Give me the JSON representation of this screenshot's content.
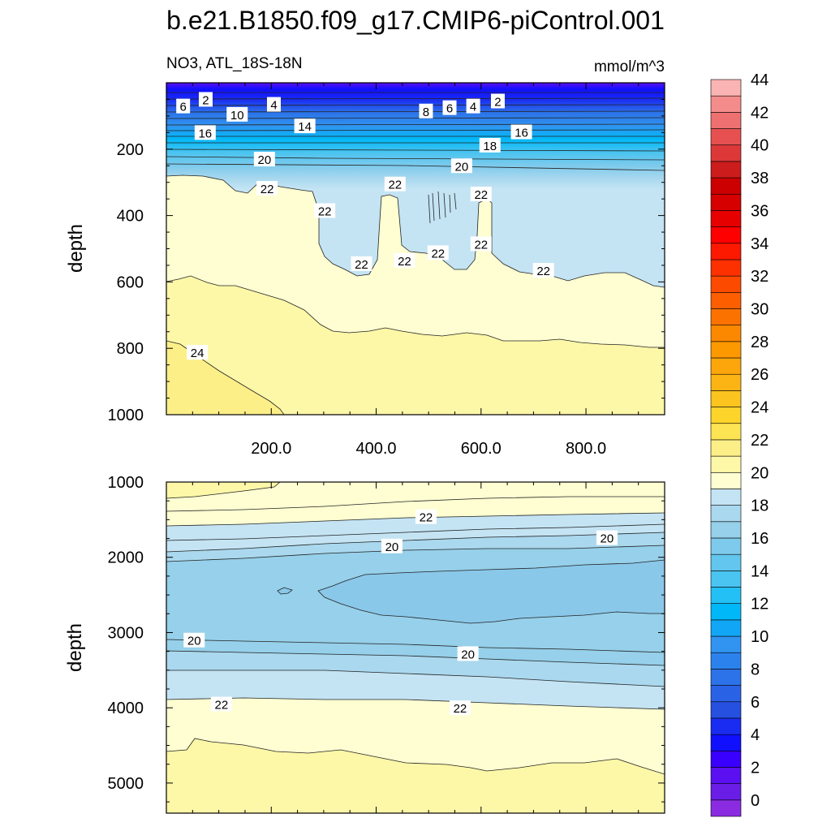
{
  "chart_data": [
    {
      "type": "contour",
      "title": "b.e21.B1850.f09_g17.CMIP6-piControl.001",
      "left_label": "NO3, ATL_18S-18N",
      "right_label": "mmol/m^3",
      "ylabel": "depth",
      "xlim": [
        0,
        950
      ],
      "ylim": [
        1000,
        0
      ],
      "xticks": [
        "200.0",
        "400.0",
        "600.0",
        "800.0"
      ],
      "xtick_values": [
        200,
        400,
        600,
        800
      ],
      "yticks": [
        "200",
        "400",
        "600",
        "800",
        "1000"
      ],
      "ytick_values": [
        200,
        400,
        600,
        800,
        1000
      ],
      "contour_labels": [
        {
          "text": "2",
          "x": 75,
          "y": 50
        },
        {
          "text": "6",
          "x": 32,
          "y": 70
        },
        {
          "text": "10",
          "x": 135,
          "y": 95
        },
        {
          "text": "4",
          "x": 205,
          "y": 65
        },
        {
          "text": "8",
          "x": 495,
          "y": 85
        },
        {
          "text": "6",
          "x": 540,
          "y": 75
        },
        {
          "text": "4",
          "x": 585,
          "y": 70
        },
        {
          "text": "2",
          "x": 632,
          "y": 55
        },
        {
          "text": "14",
          "x": 264,
          "y": 130
        },
        {
          "text": "16",
          "x": 74,
          "y": 150
        },
        {
          "text": "16",
          "x": 677,
          "y": 148
        },
        {
          "text": "18",
          "x": 617,
          "y": 188
        },
        {
          "text": "20",
          "x": 187,
          "y": 230
        },
        {
          "text": "20",
          "x": 563,
          "y": 250
        },
        {
          "text": "22",
          "x": 192,
          "y": 318
        },
        {
          "text": "22",
          "x": 436,
          "y": 305
        },
        {
          "text": "22",
          "x": 302,
          "y": 385
        },
        {
          "text": "22",
          "x": 600,
          "y": 335
        },
        {
          "text": "22",
          "x": 600,
          "y": 485
        },
        {
          "text": "22",
          "x": 518,
          "y": 512
        },
        {
          "text": "22",
          "x": 454,
          "y": 535
        },
        {
          "text": "22",
          "x": 372,
          "y": 545
        },
        {
          "text": "22",
          "x": 719,
          "y": 565
        },
        {
          "text": "24",
          "x": 59,
          "y": 812
        }
      ]
    },
    {
      "type": "contour",
      "ylabel": "depth",
      "xlim": [
        0,
        950
      ],
      "ylim": [
        5400,
        1000
      ],
      "yticks": [
        "1000",
        "2000",
        "3000",
        "4000",
        "5000"
      ],
      "ytick_values": [
        1000,
        2000,
        3000,
        4000,
        5000
      ],
      "contour_labels": [
        {
          "text": "22",
          "x": 495,
          "y": 1460
        },
        {
          "text": "20",
          "x": 430,
          "y": 1850
        },
        {
          "text": "20",
          "x": 840,
          "y": 1740
        },
        {
          "text": "20",
          "x": 53,
          "y": 3100
        },
        {
          "text": "20",
          "x": 575,
          "y": 3280
        },
        {
          "text": "22",
          "x": 105,
          "y": 3950
        },
        {
          "text": "22",
          "x": 560,
          "y": 4000
        }
      ]
    }
  ],
  "colorbar": {
    "labels": [
      "0",
      "2",
      "4",
      "6",
      "8",
      "10",
      "12",
      "14",
      "16",
      "18",
      "20",
      "22",
      "24",
      "26",
      "28",
      "30",
      "32",
      "34",
      "36",
      "38",
      "40",
      "42",
      "44"
    ],
    "colors": [
      "#8a2be2",
      "#6a1de6",
      "#5a10f0",
      "#3a00ff",
      "#1010ff",
      "#1a2cf2",
      "#2650e0",
      "#2a62e6",
      "#2c72e8",
      "#2c82ec",
      "#3094f0",
      "#12a6f6",
      "#00b8f8",
      "#22c0f4",
      "#4ac4f0",
      "#62c6ee",
      "#7ecaec",
      "#96d0ea",
      "#aad8ee",
      "#c4e4f4",
      "#fefed2",
      "#fdf7a8",
      "#fcef88",
      "#fce452",
      "#fdd42a",
      "#fcc41e",
      "#fcb414",
      "#fca60c",
      "#fc9800",
      "#fc8800",
      "#fc7200",
      "#fc5e00",
      "#fc4a00",
      "#fd3000",
      "#fd1800",
      "#fe0000",
      "#e60000",
      "#d60000",
      "#cc0000",
      "#cc1c1c",
      "#dc3838",
      "#e65050",
      "#ee7070",
      "#f48c8c",
      "#fab4b4"
    ]
  }
}
